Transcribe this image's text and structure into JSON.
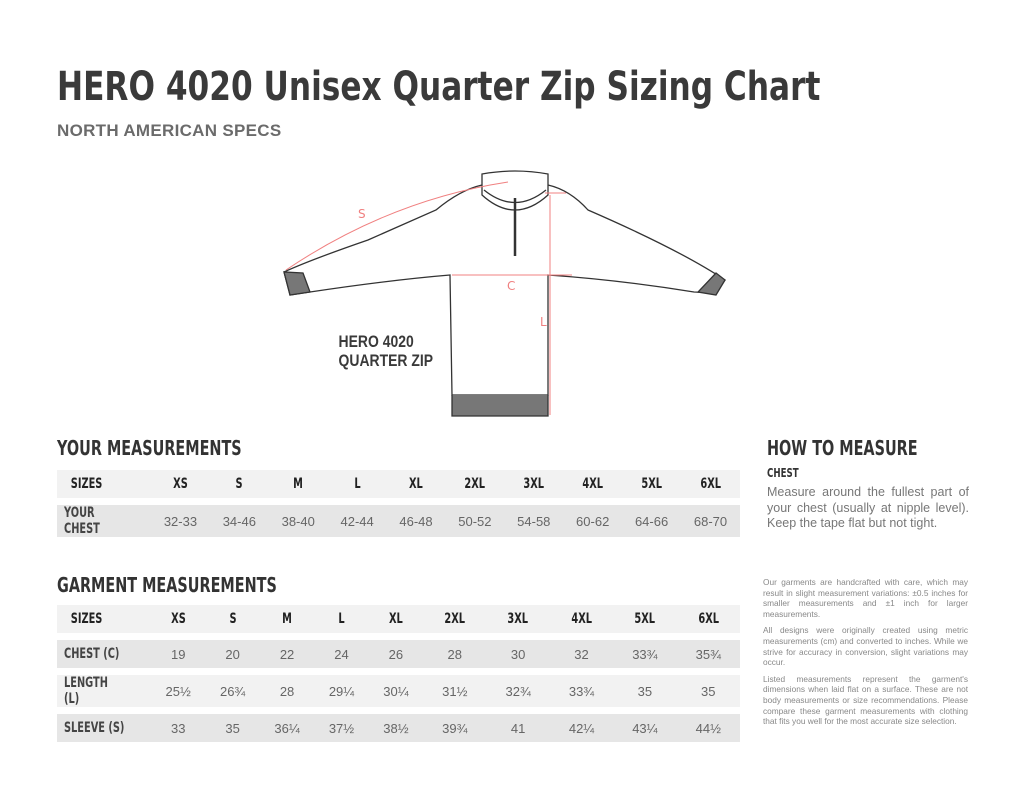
{
  "header": {
    "title": "HERO 4020 Unisex Quarter Zip Sizing Chart",
    "subtitle": "NORTH AMERICAN SPECS"
  },
  "diagram": {
    "label_line1": "HERO 4020",
    "label_line2": "QUARTER ZIP",
    "markers": {
      "sleeve": "S",
      "chest": "C",
      "length": "L"
    },
    "accent_color": "#f08080"
  },
  "your_measurements": {
    "title": "YOUR MEASUREMENTS",
    "header": [
      "SIZES",
      "XS",
      "S",
      "M",
      "L",
      "XL",
      "2XL",
      "3XL",
      "4XL",
      "5XL",
      "6XL"
    ],
    "rows": [
      {
        "label": "YOUR CHEST",
        "values": [
          "32-33",
          "34-46",
          "38-40",
          "42-44",
          "46-48",
          "50-52",
          "54-58",
          "60-62",
          "64-66",
          "68-70"
        ]
      }
    ]
  },
  "garment_measurements": {
    "title": "GARMENT MEASUREMENTS",
    "header": [
      "SIZES",
      "XS",
      "S",
      "M",
      "L",
      "XL",
      "2XL",
      "3XL",
      "4XL",
      "5XL",
      "6XL"
    ],
    "rows": [
      {
        "label": "CHEST (C)",
        "values": [
          "19",
          "20",
          "22",
          "24",
          "26",
          "28",
          "30",
          "32",
          "33¾",
          "35¾"
        ]
      },
      {
        "label": "LENGTH (L)",
        "values": [
          "25½",
          "26¾",
          "28",
          "29¼",
          "30¼",
          "31½",
          "32¾",
          "33¾",
          "35",
          "35"
        ]
      },
      {
        "label": "SLEEVE (S)",
        "values": [
          "33",
          "35",
          "36¼",
          "37½",
          "38½",
          "39¾",
          "41",
          "42¼",
          "43¼",
          "44½"
        ]
      }
    ]
  },
  "how_to_measure": {
    "title": "HOW TO MEASURE",
    "chest_title": "CHEST",
    "chest_text": "Measure around the fullest part of your chest (usually at nipple level). Keep the tape flat but not tight."
  },
  "notes": [
    "Our garments are handcrafted with care, which may result in slight measurement variations: ±0.5 inches for smaller measurements and ±1 inch for larger measurements.",
    "All designs were originally created using metric measurements (cm) and converted to inches. While we strive for accuracy in conversion, slight variations may occur.",
    "Listed measurements represent the garment's dimensions when laid flat on a surface. These are not body measurements or size recommendations. Please compare these garment measurements with clothing that fits you well for the most accurate size selection."
  ]
}
